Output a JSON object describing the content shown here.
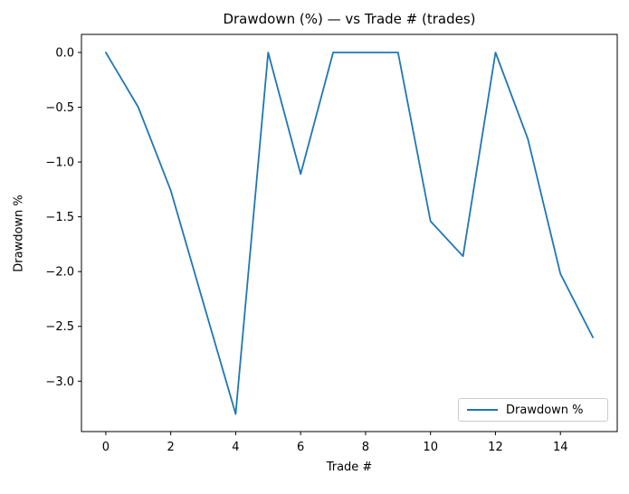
{
  "chart_data": {
    "type": "line",
    "title": "Drawdown (%) — vs Trade # (trades)",
    "xlabel": "Trade #",
    "ylabel": "Drawdown %",
    "x": [
      0,
      1,
      2,
      3,
      4,
      5,
      6,
      7,
      8,
      9,
      10,
      11,
      12,
      13,
      14,
      15
    ],
    "series": [
      {
        "name": "Drawdown %",
        "color": "#1f77b4",
        "values": [
          0.0,
          -0.5,
          -1.26,
          -2.28,
          -3.3,
          0.0,
          -1.11,
          0.0,
          0.0,
          0.0,
          -1.54,
          -1.86,
          0.0,
          -0.79,
          -2.02,
          -2.6
        ]
      }
    ],
    "xlim": [
      -0.75,
      15.75
    ],
    "ylim": [
      -3.46,
      0.165
    ],
    "xticks": [
      0,
      2,
      4,
      6,
      8,
      10,
      12,
      14
    ],
    "xticklabels": [
      "0",
      "2",
      "4",
      "6",
      "8",
      "10",
      "12",
      "14"
    ],
    "yticks": [
      0.0,
      -0.5,
      -1.0,
      -1.5,
      -2.0,
      -2.5,
      -3.0
    ],
    "yticklabels": [
      "0.0",
      "−0.5",
      "−1.0",
      "−1.5",
      "−2.0",
      "−2.5",
      "−3.0"
    ],
    "grid": false,
    "legend": {
      "position": "lower right",
      "entries": [
        "Drawdown %"
      ]
    }
  }
}
